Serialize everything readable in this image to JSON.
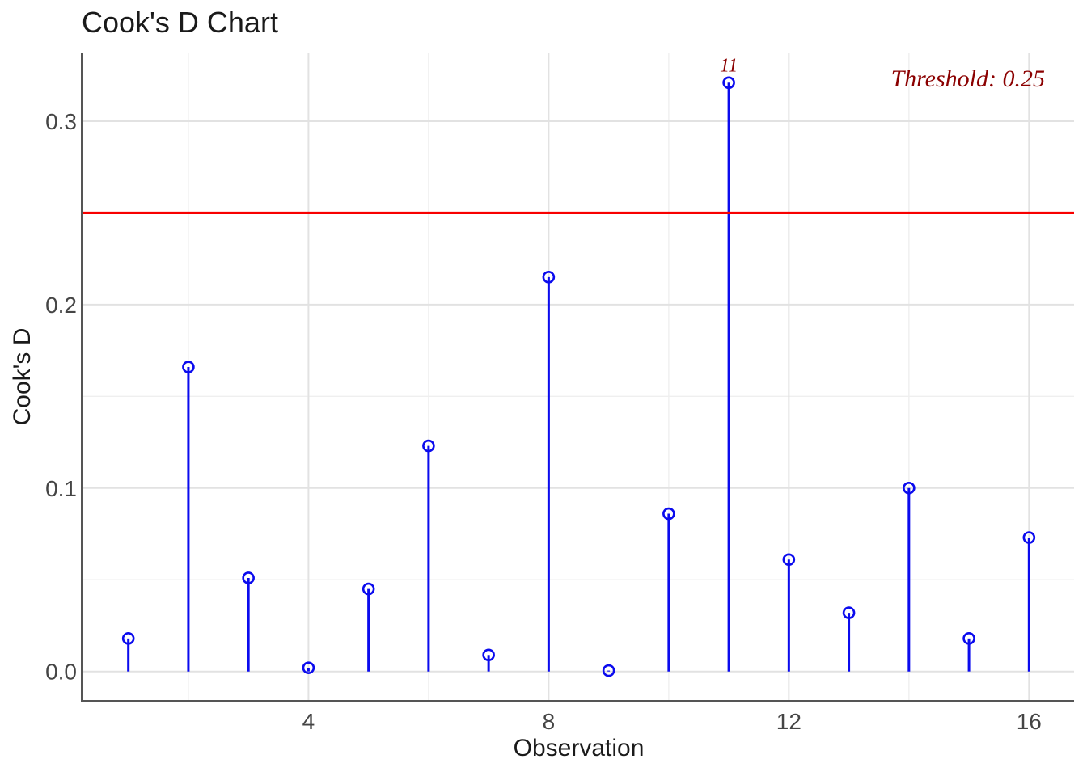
{
  "chart_data": {
    "type": "lollipop",
    "title": "Cook's D Chart",
    "xlabel": "Observation",
    "ylabel": "Cook's D",
    "x": [
      1,
      2,
      3,
      4,
      5,
      6,
      7,
      8,
      9,
      10,
      11,
      12,
      13,
      14,
      15,
      16
    ],
    "values": [
      0.018,
      0.166,
      0.051,
      0.002,
      0.045,
      0.123,
      0.009,
      0.215,
      0.0005,
      0.086,
      0.321,
      0.061,
      0.032,
      0.1,
      0.018,
      0.073
    ],
    "threshold": 0.25,
    "threshold_label": "Threshold: 0.25",
    "annotations": [
      {
        "text": "11",
        "x": 11,
        "y": 0.321
      }
    ],
    "x_ticks": {
      "values": [
        4,
        8,
        12,
        16
      ],
      "labels": [
        "4",
        "8",
        "12",
        "16"
      ]
    },
    "y_ticks": {
      "values": [
        0,
        0.1,
        0.2,
        0.3
      ],
      "labels": [
        "0.0",
        "0.1",
        "0.2",
        "0.3"
      ]
    },
    "x_minor": [
      2,
      6,
      10,
      14
    ],
    "y_minor": [
      0.05,
      0.15,
      0.25
    ],
    "xlim": [
      0.25,
      16.75
    ],
    "ylim": [
      -0.016,
      0.337
    ],
    "grid": true,
    "legend": "none",
    "colors": {
      "stem": "#0b0bee",
      "point": "#0b0bee",
      "threshold_line": "#f80000",
      "threshold_text": "#8b0000",
      "annotation_text": "#8b0000",
      "grid_major": "#e2e2e2",
      "grid_minor": "#efefef",
      "axis_line": "#555555",
      "axis_text": "#454545",
      "title_text": "#1a1a1a",
      "background": "#ffffff"
    }
  }
}
